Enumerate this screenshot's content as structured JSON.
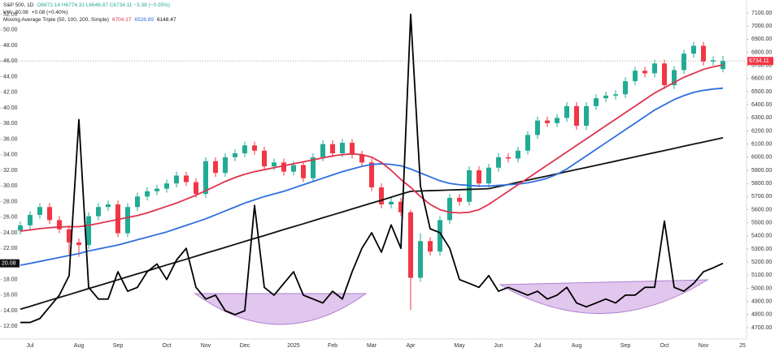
{
  "chart_data": {
    "type": "candlestick",
    "header": {
      "symbol": "S&P 500, 1D",
      "ohlc": "O6672.14 H6774.31 L6646.87 C6734.11 −3.38 (−0.05%)",
      "vix_label": "VIX",
      "vix_change": "+0.08 (+0.40%)",
      "ma_label": "Moving Average Triple (50, 100, 200, Simple)"
    },
    "categories": [
      null,
      "Jul",
      null,
      null,
      null,
      null,
      "Aug",
      null,
      null,
      null,
      "Sep",
      null,
      null,
      null,
      null,
      "Oct",
      null,
      null,
      null,
      "Nov",
      null,
      null,
      null,
      "Dec",
      null,
      null,
      null,
      null,
      "2025",
      null,
      null,
      null,
      "Feb",
      null,
      null,
      null,
      "Mar",
      null,
      null,
      null,
      "Apr",
      null,
      null,
      null,
      null,
      "May",
      null,
      null,
      null,
      "Jun",
      null,
      null,
      null,
      "Jul",
      null,
      null,
      null,
      "Aug",
      null,
      null,
      null,
      null,
      "Sep",
      null,
      null,
      null,
      "Oct",
      null,
      null,
      null,
      "Nov",
      null,
      null,
      null,
      "25"
    ],
    "ylim": [
      11,
      53
    ],
    "yticks": [
      {
        "value": 12,
        "label": "12.00"
      },
      {
        "value": 14,
        "label": "14.00"
      },
      {
        "value": 16,
        "label": "16.00"
      },
      {
        "value": 18,
        "label": "18.00"
      },
      {
        "value": 20,
        "label": "20.00"
      },
      {
        "value": 22,
        "label": "22.00"
      },
      {
        "value": 24,
        "label": "24.00"
      },
      {
        "value": 26,
        "label": "26.00"
      },
      {
        "value": 28,
        "label": "28.00"
      },
      {
        "value": 30,
        "label": "30.00"
      },
      {
        "value": 32,
        "label": "32.00"
      },
      {
        "value": 34,
        "label": "34.00"
      },
      {
        "value": 36,
        "label": "36.00"
      },
      {
        "value": 38,
        "label": "38.00"
      },
      {
        "value": 40,
        "label": "40.00"
      },
      {
        "value": 42,
        "label": "42.00"
      },
      {
        "value": 44,
        "label": "44.00"
      },
      {
        "value": 46,
        "label": "46.00"
      },
      {
        "value": 48,
        "label": "48.00"
      },
      {
        "value": 50,
        "label": "50.00"
      },
      {
        "value": 52,
        "label": "52.00"
      }
    ],
    "y2lim": [
      4650,
      7150
    ],
    "y2ticks": [
      {
        "value": 4700,
        "label": "4700.00"
      },
      {
        "value": 4800,
        "label": "4800.00"
      },
      {
        "value": 4900,
        "label": "4900.00"
      },
      {
        "value": 5000,
        "label": "5000.00"
      },
      {
        "value": 5100,
        "label": "5100.00"
      },
      {
        "value": 5200,
        "label": "5200.00"
      },
      {
        "value": 5300,
        "label": "5300.00"
      },
      {
        "value": 5400,
        "label": "5400.00"
      },
      {
        "value": 5500,
        "label": "5500.00"
      },
      {
        "value": 5600,
        "label": "5600.00"
      },
      {
        "value": 5700,
        "label": "5700.00"
      },
      {
        "value": 5800,
        "label": "5800.00"
      },
      {
        "value": 5900,
        "label": "5900.00"
      },
      {
        "value": 6000,
        "label": "6000.00"
      },
      {
        "value": 6100,
        "label": "6100.00"
      },
      {
        "value": 6200,
        "label": "6200.00"
      },
      {
        "value": 6300,
        "label": "6300.00"
      },
      {
        "value": 6400,
        "label": "6400.00"
      },
      {
        "value": 6500,
        "label": "6500.00"
      },
      {
        "value": 6600,
        "label": "6600.00"
      },
      {
        "value": 6700,
        "label": "6700.00"
      },
      {
        "value": 6800,
        "label": "6800.00"
      },
      {
        "value": 6900,
        "label": "6900.00"
      },
      {
        "value": 7000,
        "label": "7000.00"
      },
      {
        "value": 7100,
        "label": "7100.00"
      }
    ],
    "grid": false,
    "series": [
      {
        "type": "candlestick",
        "axis": "y2",
        "up_color": "#22ab94",
        "down_color": "#f23645",
        "open": [
          5440,
          5480,
          5560,
          5620,
          5520,
          5450,
          5350,
          5330,
          5550,
          5620,
          5640,
          5420,
          5620,
          5700,
          5740,
          5760,
          5800,
          5860,
          5810,
          5720,
          5970,
          5880,
          6000,
          6030,
          6090,
          6050,
          5930,
          5960,
          5890,
          5940,
          5840,
          6000,
          6100,
          6030,
          6110,
          6020,
          5960,
          5770,
          5640,
          5660,
          5580,
          5080,
          5360,
          5280,
          5520,
          5690,
          5660,
          5900,
          5800,
          5920,
          6000,
          5990,
          6050,
          6170,
          6280,
          6260,
          6300,
          6390,
          6240,
          6390,
          6450,
          6470,
          6480,
          6580,
          6660,
          6640,
          6715,
          6550,
          6665,
          6790,
          6850,
          6730,
          6672.14,
          null,
          null
        ],
        "high": [
          5510,
          5590,
          5650,
          5650,
          5550,
          5480,
          5380,
          5580,
          5650,
          5670,
          5670,
          5650,
          5730,
          5770,
          5790,
          5830,
          5890,
          5890,
          5840,
          6000,
          6000,
          6030,
          6060,
          6120,
          6120,
          6080,
          5990,
          5990,
          5970,
          5970,
          6030,
          6130,
          6130,
          6140,
          6140,
          6050,
          5990,
          5800,
          5690,
          5690,
          5600,
          5420,
          5390,
          5550,
          5720,
          5720,
          5930,
          5930,
          5950,
          6030,
          6030,
          6080,
          6200,
          6310,
          6310,
          6330,
          6420,
          6420,
          6420,
          6480,
          6500,
          6510,
          6610,
          6690,
          6690,
          6745,
          6745,
          6695,
          6820,
          6880,
          6880,
          6770,
          6774.31,
          null,
          null
        ],
        "low": [
          5410,
          5450,
          5530,
          5490,
          5420,
          5260,
          5240,
          5300,
          5520,
          5590,
          5390,
          5390,
          5590,
          5670,
          5710,
          5730,
          5770,
          5780,
          5690,
          5690,
          5850,
          5850,
          5970,
          6000,
          6020,
          5900,
          5900,
          5860,
          5860,
          5810,
          5810,
          5970,
          6000,
          6000,
          5990,
          5930,
          5740,
          5610,
          5610,
          5550,
          4835,
          5050,
          5250,
          5250,
          5490,
          5630,
          5630,
          5770,
          5770,
          5890,
          5960,
          5960,
          6020,
          6140,
          6230,
          6230,
          6270,
          6210,
          6210,
          6360,
          6420,
          6440,
          6450,
          6550,
          6610,
          6610,
          6520,
          6520,
          6635,
          6760,
          6700,
          6700,
          6646.87,
          null,
          null
        ],
        "close": [
          5480,
          5560,
          5620,
          5520,
          5450,
          5350,
          5330,
          5550,
          5620,
          5640,
          5420,
          5620,
          5700,
          5740,
          5760,
          5800,
          5860,
          5810,
          5720,
          5970,
          5880,
          6000,
          6030,
          6090,
          6050,
          5930,
          5960,
          5890,
          5940,
          5840,
          6000,
          6100,
          6030,
          6110,
          6020,
          5960,
          5770,
          5640,
          5660,
          5580,
          5080,
          5360,
          5280,
          5520,
          5690,
          5660,
          5900,
          5800,
          5920,
          6000,
          5990,
          6050,
          6170,
          6280,
          6260,
          6300,
          6390,
          6240,
          6390,
          6450,
          6470,
          6480,
          6580,
          6660,
          6640,
          6715,
          6550,
          6665,
          6790,
          6850,
          6730,
          6740,
          6734.11,
          null,
          null
        ]
      },
      {
        "type": "line",
        "axis": "y",
        "color": "#000000",
        "width": 1.8,
        "values": [
          12.5,
          12.5,
          13,
          14.5,
          16,
          18.5,
          38.5,
          17,
          15.5,
          15.5,
          19,
          16.5,
          17,
          19,
          20,
          18,
          20.5,
          22,
          17,
          15.5,
          16,
          14,
          13.5,
          14,
          27.5,
          17,
          16,
          17.5,
          19,
          16,
          15.5,
          15,
          16.5,
          15.5,
          19,
          22,
          24,
          21.5,
          25,
          22,
          52,
          30,
          24.5,
          24,
          22,
          18,
          17.5,
          17,
          18.5,
          16.5,
          17,
          16.5,
          16,
          16.5,
          15.5,
          16,
          17,
          15,
          14.5,
          15,
          15.5,
          15,
          16,
          16,
          17,
          17,
          25.5,
          17,
          16.5,
          17.5,
          19,
          19.5,
          20.08,
          null,
          null
        ]
      },
      {
        "type": "line",
        "axis": "y2",
        "color": "#e0334f",
        "width": 1.8,
        "values": [
          5436,
          5445,
          5455,
          5462,
          5468,
          5470,
          5470,
          5480,
          5495,
          5510,
          5525,
          5540,
          5555,
          5575,
          5600,
          5625,
          5650,
          5680,
          5710,
          5745,
          5780,
          5815,
          5845,
          5870,
          5890,
          5905,
          5920,
          5935,
          5950,
          5965,
          5980,
          5995,
          6010,
          6020,
          6025,
          6020,
          6000,
          5960,
          5900,
          5830,
          5770,
          5700,
          5640,
          5600,
          5580,
          5575,
          5580,
          5600,
          5640,
          5690,
          5740,
          5790,
          5840,
          5890,
          5940,
          5990,
          6040,
          6090,
          6140,
          6190,
          6240,
          6290,
          6340,
          6390,
          6440,
          6490,
          6530,
          6570,
          6610,
          6640,
          6670,
          6690,
          6704.17,
          null,
          null
        ]
      },
      {
        "type": "line",
        "axis": "y2",
        "color": "#2f6fe0",
        "width": 1.8,
        "values": [
          5176,
          5190,
          5205,
          5220,
          5235,
          5250,
          5265,
          5285,
          5300,
          5315,
          5330,
          5350,
          5370,
          5390,
          5410,
          5430,
          5455,
          5480,
          5505,
          5530,
          5560,
          5590,
          5620,
          5650,
          5675,
          5700,
          5720,
          5740,
          5765,
          5790,
          5815,
          5840,
          5865,
          5890,
          5910,
          5930,
          5945,
          5950,
          5945,
          5935,
          5910,
          5880,
          5850,
          5820,
          5800,
          5790,
          5785,
          5780,
          5780,
          5785,
          5790,
          5795,
          5805,
          5820,
          5840,
          5870,
          5910,
          5960,
          6010,
          6060,
          6110,
          6160,
          6210,
          6260,
          6310,
          6360,
          6400,
          6440,
          6470,
          6495,
          6510,
          6520,
          6526.89,
          null,
          null
        ]
      },
      {
        "type": "line",
        "axis": "y2",
        "color": "#111111",
        "width": 1.8,
        "values": [
          4840,
          4862,
          4885,
          4908,
          4930,
          4952,
          4975,
          4998,
          5020,
          5042,
          5065,
          5088,
          5110,
          5132,
          5155,
          5178,
          5200,
          5222,
          5245,
          5268,
          5290,
          5312,
          5335,
          5358,
          5380,
          5402,
          5425,
          5448,
          5470,
          5492,
          5515,
          5538,
          5560,
          5582,
          5605,
          5628,
          5650,
          5672,
          5695,
          5718,
          5740,
          5742,
          5745,
          5747,
          5750,
          5752,
          5755,
          5757,
          5760,
          5776,
          5792,
          5809,
          5825,
          5841,
          5857,
          5873,
          5890,
          5906,
          5922,
          5938,
          5954,
          5970,
          5987,
          6003,
          6019,
          6035,
          6051,
          6067,
          6084,
          6100,
          6116,
          6132,
          6148.47,
          null,
          null
        ]
      }
    ]
  }
}
